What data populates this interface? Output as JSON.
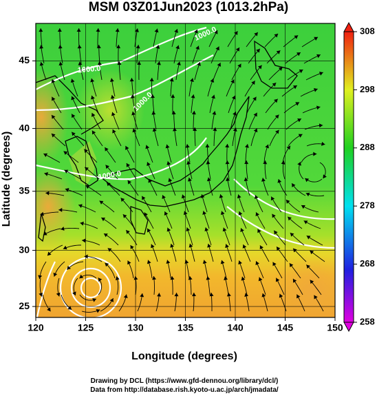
{
  "map": {
    "title": "MSM 03Z01Jun2023 (1013.2hPa)",
    "xlabel": "Longitude (degrees)",
    "ylabel": "Latitude  (degrees)",
    "xlim": [
      120,
      150
    ],
    "xticks": [
      120,
      125,
      130,
      135,
      140,
      145,
      150
    ],
    "ylim": [
      24,
      47.6
    ],
    "yticks": [
      25,
      30,
      35,
      40,
      45
    ],
    "colorbar": {
      "lim": [
        258,
        308
      ],
      "ticks": [
        258,
        268,
        278,
        288,
        298,
        308
      ]
    },
    "contour_labels": [
      "1000.0",
      "1000.0",
      "1000.0",
      "1000.0"
    ],
    "footer": [
      "Drawing by DCL (https://www.gfd-dennou.org/library/dcl/)",
      "Data from http://database.rish.kyoto-u.ac.jp/arch/jmadata/"
    ]
  }
}
